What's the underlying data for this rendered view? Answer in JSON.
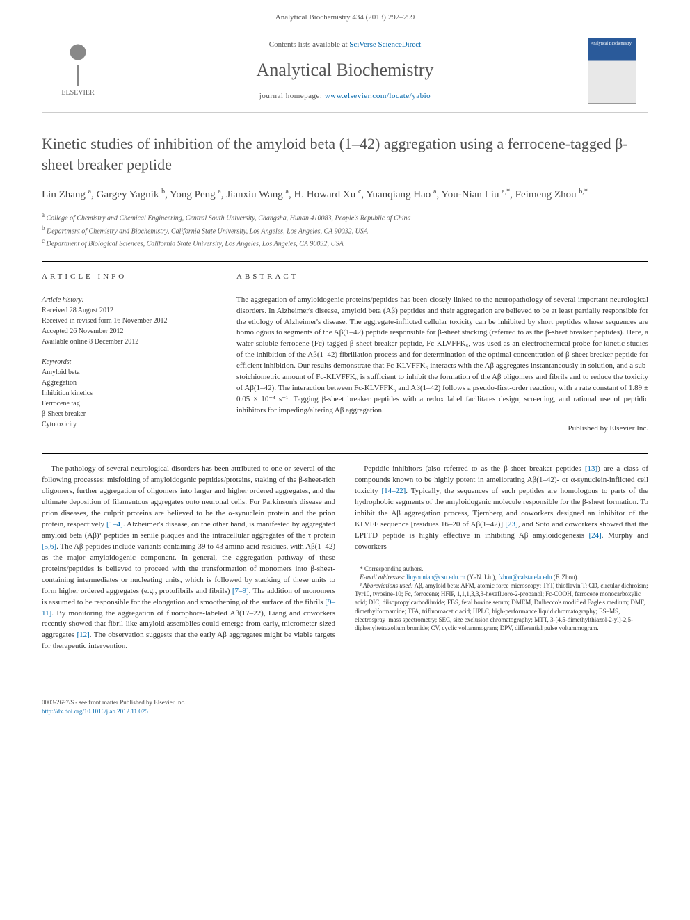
{
  "header": {
    "citation": "Analytical Biochemistry 434 (2013) 292–299"
  },
  "masthead": {
    "contents_prefix": "Contents lists available at ",
    "contents_link": "SciVerse ScienceDirect",
    "journal": "Analytical Biochemistry",
    "homepage_prefix": "journal homepage: ",
    "homepage_url": "www.elsevier.com/locate/yabio",
    "publisher_logo_text": "ELSEVIER"
  },
  "article": {
    "title": "Kinetic studies of inhibition of the amyloid beta (1–42) aggregation using a ferrocene-tagged β-sheet breaker peptide",
    "authors_html": "Lin Zhang <sup>a</sup>, Gargey Yagnik <sup>b</sup>, Yong Peng <sup>a</sup>, Jianxiu Wang <sup>a</sup>, H. Howard Xu <sup>c</sup>, Yuanqiang Hao <sup>a</sup>, You-Nian Liu <sup>a,*</sup>, Feimeng Zhou <sup>b,*</sup>",
    "affiliations": [
      {
        "sup": "a",
        "text": "College of Chemistry and Chemical Engineering, Central South University, Changsha, Hunan 410083, People's Republic of China"
      },
      {
        "sup": "b",
        "text": "Department of Chemistry and Biochemistry, California State University, Los Angeles, Los Angeles, CA 90032, USA"
      },
      {
        "sup": "c",
        "text": "Department of Biological Sciences, California State University, Los Angeles, Los Angeles, CA 90032, USA"
      }
    ]
  },
  "info": {
    "heading": "ARTICLE INFO",
    "history_label": "Article history:",
    "history": [
      "Received 28 August 2012",
      "Received in revised form 16 November 2012",
      "Accepted 26 November 2012",
      "Available online 8 December 2012"
    ],
    "keywords_label": "Keywords:",
    "keywords": [
      "Amyloid beta",
      "Aggregation",
      "Inhibition kinetics",
      "Ferrocene tag",
      "β-Sheet breaker",
      "Cytotoxicity"
    ]
  },
  "abstract": {
    "heading": "ABSTRACT",
    "text": "The aggregation of amyloidogenic proteins/peptides has been closely linked to the neuropathology of several important neurological disorders. In Alzheimer's disease, amyloid beta (Aβ) peptides and their aggregation are believed to be at least partially responsible for the etiology of Alzheimer's disease. The aggregate-inflicted cellular toxicity can be inhibited by short peptides whose sequences are homologous to segments of the Aβ(1–42) peptide responsible for β-sheet stacking (referred to as the β-sheet breaker peptides). Here, a water-soluble ferrocene (Fc)-tagged β-sheet breaker peptide, Fc-KLVFFK₆, was used as an electrochemical probe for kinetic studies of the inhibition of the Aβ(1–42) fibrillation process and for determination of the optimal concentration of β-sheet breaker peptide for efficient inhibition. Our results demonstrate that Fc-KLVFFK₆ interacts with the Aβ aggregates instantaneously in solution, and a sub-stoichiometric amount of Fc-KLVFFK₆ is sufficient to inhibit the formation of the Aβ oligomers and fibrils and to reduce the toxicity of Aβ(1–42). The interaction between Fc-KLVFFK₆ and Aβ(1–42) follows a pseudo-first-order reaction, with a rate constant of 1.89 ± 0.05 × 10⁻⁴ s⁻¹. Tagging β-sheet breaker peptides with a redox label facilitates design, screening, and rational use of peptidic inhibitors for impeding/altering Aβ aggregation.",
    "published_by": "Published by Elsevier Inc."
  },
  "body": {
    "p1": "The pathology of several neurological disorders has been attributed to one or several of the following processes: misfolding of amyloidogenic peptides/proteins, staking of the β-sheet-rich oligomers, further aggregation of oligomers into larger and higher ordered aggregates, and the ultimate deposition of filamentous aggregates onto neuronal cells. For Parkinson's disease and prion diseases, the culprit proteins are believed to be the α-synuclein protein and the prion protein, respectively ",
    "p1_ref1": "[1–4]",
    "p1b": ". Alzheimer's disease, on the other hand, is manifested by aggregated amyloid beta (Aβ)¹ peptides in senile plaques and the intracellular aggregates of the τ protein ",
    "p1_ref2": "[5,6]",
    "p1c": ". The Aβ peptides include variants containing 39 to 43 amino acid residues, with Aβ(1–42) as the major ",
    "p2": "amyloidogenic component. In general, the aggregation pathway of these proteins/peptides is believed to proceed with the transformation of monomers into β-sheet-containing intermediates or nucleating units, which is followed by stacking of these units to form higher ordered aggregates (e.g., protofibrils and fibrils) ",
    "p2_ref1": "[7–9]",
    "p2b": ". The addition of monomers is assumed to be responsible for the elongation and smoothening of the surface of the fibrils ",
    "p2_ref2": "[9–11]",
    "p2c": ". By monitoring the aggregation of fluorophore-labeled Aβ(17–22), Liang and coworkers recently showed that fibril-like amyloid assemblies could emerge from early, micrometer-sized aggregates ",
    "p2_ref3": "[12]",
    "p2d": ". The observation suggests that the early Aβ aggregates might be viable targets for therapeutic intervention.",
    "p3a": "Peptidic inhibitors (also referred to as the β-sheet breaker peptides ",
    "p3_ref1": "[13]",
    "p3b": ") are a class of compounds known to be highly potent in ameliorating Aβ(1–42)- or α-synuclein-inflicted cell toxicity ",
    "p3_ref2": "[14–22]",
    "p3c": ". Typically, the sequences of such peptides are homologous to parts of the hydrophobic segments of the amyloidogenic molecule responsible for the β-sheet formation. To inhibit the Aβ aggregation process, Tjernberg and coworkers designed an inhibitor of the KLVFF sequence [residues 16–20 of Aβ(1–42)] ",
    "p3_ref3": "[23]",
    "p3d": ", and Soto and coworkers showed that the LPFFD peptide is highly effective in inhibiting Aβ amyloidogenesis ",
    "p3_ref4": "[24]",
    "p3e": ". Murphy and coworkers"
  },
  "footnotes": {
    "corr_label": "* Corresponding authors.",
    "email_label": "E-mail addresses:",
    "email1": "liuyounian@csu.edu.cn",
    "email1_who": " (Y.-N. Liu), ",
    "email2": "fzhou@calstatela.edu",
    "email2_who": " (F. Zhou).",
    "abbrev_label": "¹ Abbreviations used:",
    "abbrev_text": " Aβ, amyloid beta; AFM, atomic force microscopy; ThT, thioflavin T; CD, circular dichroism; Tyr10, tyrosine-10; Fc, ferrocene; HFIP, 1,1,1,3,3,3-hexafluoro-2-propanol; Fc-COOH, ferrocene monocarboxylic acid; DIC, diisopropylcarbodiimide; FBS, fetal bovine serum; DMEM, Dulbecco's modified Eagle's medium; DMF, dimethylformamide; TFA, trifluoroacetic acid; HPLC, high-performance liquid chromatography; ES–MS, electrospray–mass spectrometry; SEC, size exclusion chromatography; MTT, 3-[4,5-dimethylthiazol-2-yl]-2,5-diphenyltetrazolium bromide; CV, cyclic voltammogram; DPV, differential pulse voltammogram."
  },
  "bottom": {
    "line1": "0003-2697/$ - see front matter Published by Elsevier Inc.",
    "doi": "http://dx.doi.org/10.1016/j.ab.2012.11.025"
  },
  "colors": {
    "link": "#0066aa",
    "text": "#333333",
    "muted": "#555555"
  }
}
